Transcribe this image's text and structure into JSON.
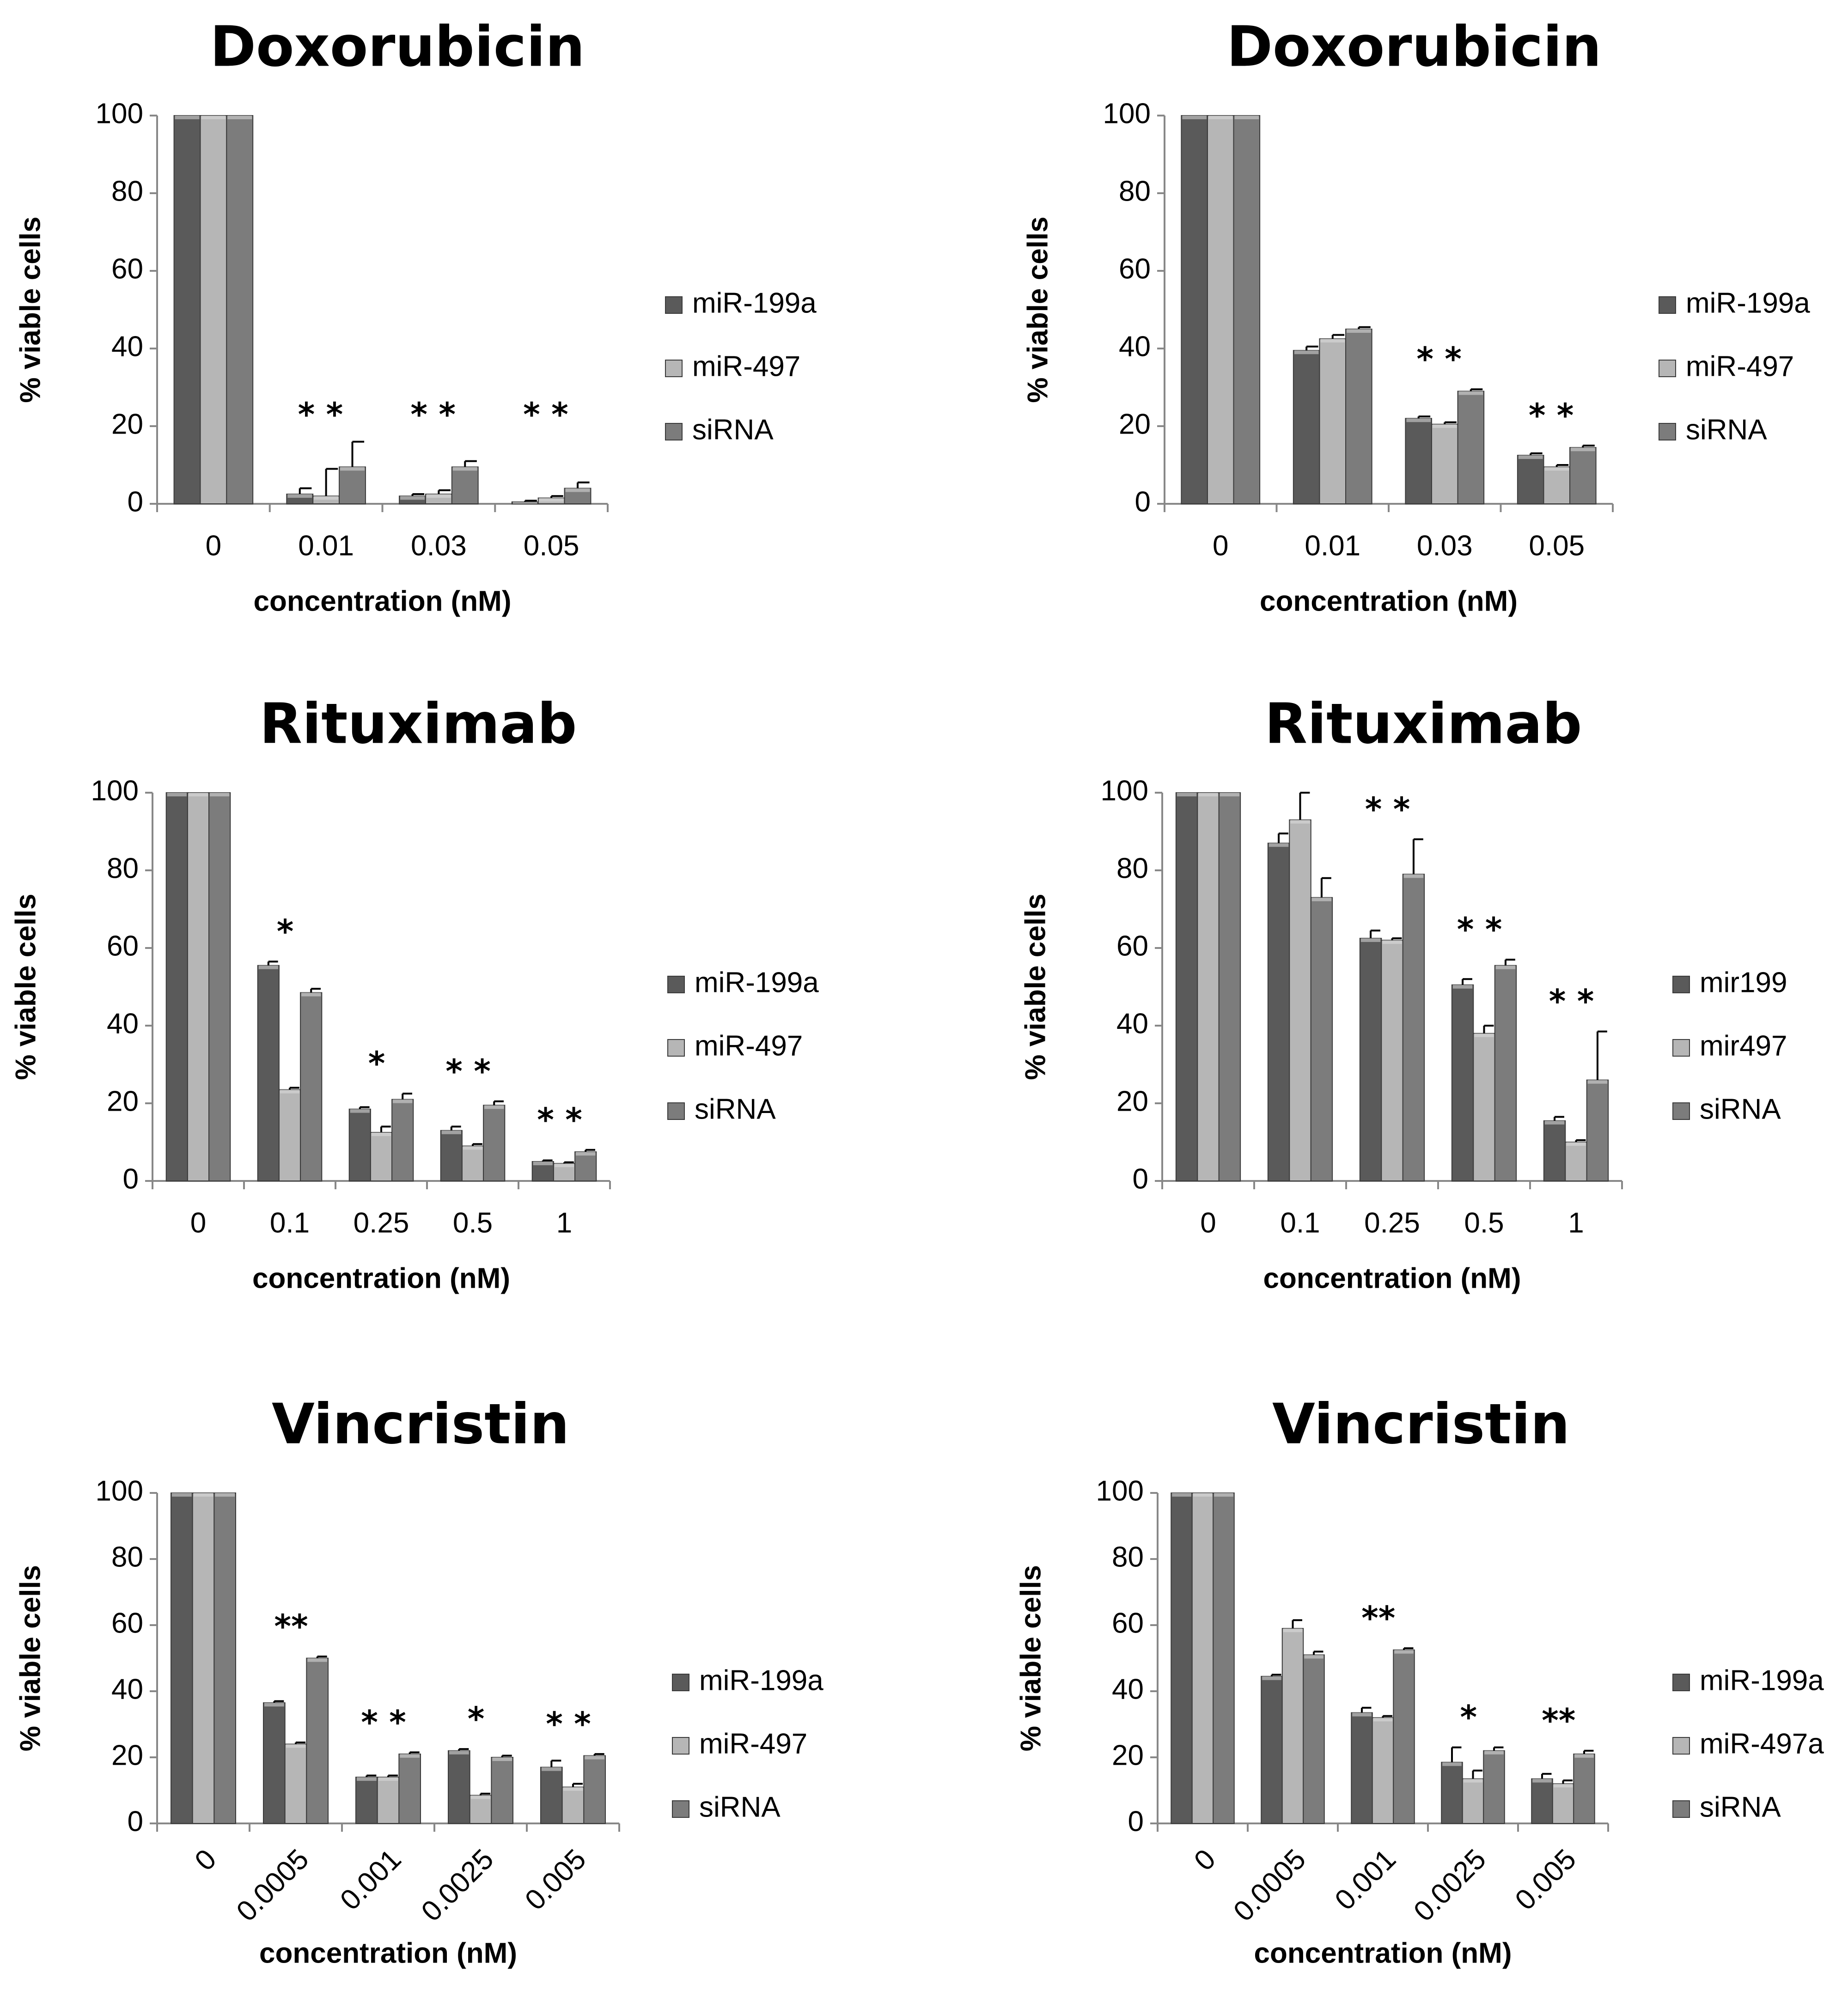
{
  "colors": {
    "series": [
      "#5a5a5a",
      "#b6b6b6",
      "#7c7c7c"
    ],
    "axis": "#888888"
  },
  "chart_data": [
    {
      "type": "bar",
      "title": "Doxorubicin",
      "xlabel": "concentration (nM)",
      "ylabel": "% viable cells",
      "ylim": [
        0,
        100
      ],
      "yticks": [
        "0",
        "20",
        "40",
        "60",
        "80",
        "100"
      ],
      "categories": [
        "0",
        "0.01",
        "0.03",
        "0.05"
      ],
      "series": [
        {
          "name": "miR-199a",
          "values": [
            100,
            2.5,
            2,
            0.5
          ],
          "errors": [
            0,
            1.5,
            0.5,
            0.3
          ]
        },
        {
          "name": "miR-497",
          "values": [
            100,
            2,
            2.5,
            1.5
          ],
          "errors": [
            0,
            7,
            1,
            0.5
          ]
        },
        {
          "name": "siRNA",
          "values": [
            100,
            9.5,
            9.5,
            4
          ],
          "errors": [
            0,
            6.5,
            1.5,
            1.5
          ]
        }
      ],
      "significance": [
        "",
        "* *",
        "* *",
        "* *"
      ],
      "legend_position": "right"
    },
    {
      "type": "bar",
      "title": "Doxorubicin",
      "xlabel": "concentration (nM)",
      "ylabel": "% viable cells",
      "ylim": [
        0,
        100
      ],
      "yticks": [
        "0",
        "20",
        "40",
        "60",
        "80",
        "100"
      ],
      "categories": [
        "0",
        "0.01",
        "0.03",
        "0.05"
      ],
      "series": [
        {
          "name": "miR-199a",
          "values": [
            100,
            39.5,
            22,
            12.5
          ],
          "errors": [
            0,
            1,
            0.5,
            0.5
          ]
        },
        {
          "name": "miR-497",
          "values": [
            100,
            42.5,
            20.5,
            9.5
          ],
          "errors": [
            0,
            1,
            0.5,
            0.5
          ]
        },
        {
          "name": "siRNA",
          "values": [
            100,
            45,
            29,
            14.5
          ],
          "errors": [
            0,
            0.5,
            0.5,
            0.5
          ]
        }
      ],
      "significance": [
        "",
        "",
        "* *",
        "* *"
      ],
      "legend_position": "right"
    },
    {
      "type": "bar",
      "title": "Rituximab",
      "xlabel": "concentration (nM)",
      "ylabel": "% viable cells",
      "ylim": [
        0,
        100
      ],
      "yticks": [
        "0",
        "20",
        "40",
        "60",
        "80",
        "100"
      ],
      "categories": [
        "0",
        "0.1",
        "0.25",
        "0.5",
        "1"
      ],
      "series": [
        {
          "name": "miR-199a",
          "values": [
            100,
            55.5,
            18.5,
            13,
            5
          ],
          "errors": [
            0,
            1,
            0.5,
            1,
            0.3
          ]
        },
        {
          "name": "miR-497",
          "values": [
            100,
            23.5,
            12.5,
            9,
            4.5
          ],
          "errors": [
            0,
            0.5,
            1.5,
            0.5,
            0.3
          ]
        },
        {
          "name": "siRNA",
          "values": [
            100,
            48.5,
            21,
            19.5,
            7.5
          ],
          "errors": [
            0,
            1,
            1.5,
            1,
            0.5
          ]
        }
      ],
      "significance": [
        "",
        "*",
        "*",
        "* *",
        "* *"
      ],
      "legend_position": "right"
    },
    {
      "type": "bar",
      "title": "Rituximab",
      "xlabel": "concentration (nM)",
      "ylabel": "% viable cells",
      "ylim": [
        0,
        100
      ],
      "yticks": [
        "0",
        "20",
        "40",
        "60",
        "80",
        "100"
      ],
      "categories": [
        "0",
        "0.1",
        "0.25",
        "0.5",
        "1"
      ],
      "series": [
        {
          "name": "mir199",
          "values": [
            100,
            87,
            62.5,
            50.5,
            15.5
          ],
          "errors": [
            0,
            2.5,
            2,
            1.5,
            1
          ]
        },
        {
          "name": "mir497",
          "values": [
            100,
            93,
            62,
            38,
            10
          ],
          "errors": [
            0,
            7,
            0.5,
            2,
            0.5
          ]
        },
        {
          "name": "siRNA",
          "values": [
            100,
            73,
            79,
            55.5,
            26
          ],
          "errors": [
            0,
            5,
            9,
            1.5,
            12.5
          ]
        }
      ],
      "significance": [
        "",
        "",
        "* *",
        "* *",
        "* *"
      ],
      "legend_position": "right"
    },
    {
      "type": "bar",
      "title": "Vincristin",
      "xlabel": "concentration (nM)",
      "ylabel": "% viable cells",
      "ylim": [
        0,
        100
      ],
      "yticks": [
        "0",
        "20",
        "40",
        "60",
        "80",
        "100"
      ],
      "categories": [
        "0",
        "0.0005",
        "0.001",
        "0.0025",
        "0.005"
      ],
      "series": [
        {
          "name": "miR-199a",
          "values": [
            100,
            36.5,
            14,
            22,
            17
          ],
          "errors": [
            0,
            0.5,
            0.5,
            0.5,
            2
          ]
        },
        {
          "name": "miR-497",
          "values": [
            100,
            24,
            14,
            8.5,
            11
          ],
          "errors": [
            0,
            0.5,
            0.5,
            0.5,
            1
          ]
        },
        {
          "name": "siRNA",
          "values": [
            100,
            50,
            21,
            20,
            20.5
          ],
          "errors": [
            0,
            0.5,
            0.5,
            0.5,
            0.5
          ]
        }
      ],
      "significance": [
        "",
        "**",
        "* *",
        "*",
        "* *"
      ],
      "legend_position": "right"
    },
    {
      "type": "bar",
      "title": "Vincristin",
      "xlabel": "concentration (nM)",
      "ylabel": "% viable cells",
      "ylim": [
        0,
        100
      ],
      "yticks": [
        "0",
        "20",
        "40",
        "60",
        "80",
        "100"
      ],
      "categories": [
        "0",
        "0.0005",
        "0.001",
        "0.0025",
        "0.005"
      ],
      "series": [
        {
          "name": "miR-199a",
          "values": [
            100,
            44.5,
            33.5,
            18.5,
            13.5
          ],
          "errors": [
            0,
            0.5,
            1.5,
            4.5,
            1.5
          ]
        },
        {
          "name": "miR-497a",
          "values": [
            100,
            59,
            32,
            13.5,
            12
          ],
          "errors": [
            0,
            2.5,
            0.5,
            2.5,
            1
          ]
        },
        {
          "name": "siRNA",
          "values": [
            100,
            51,
            52.5,
            22,
            21
          ],
          "errors": [
            0,
            1,
            0.5,
            1,
            1
          ]
        }
      ],
      "significance": [
        "",
        "",
        "**",
        "*",
        "**"
      ],
      "legend_position": "right"
    }
  ]
}
